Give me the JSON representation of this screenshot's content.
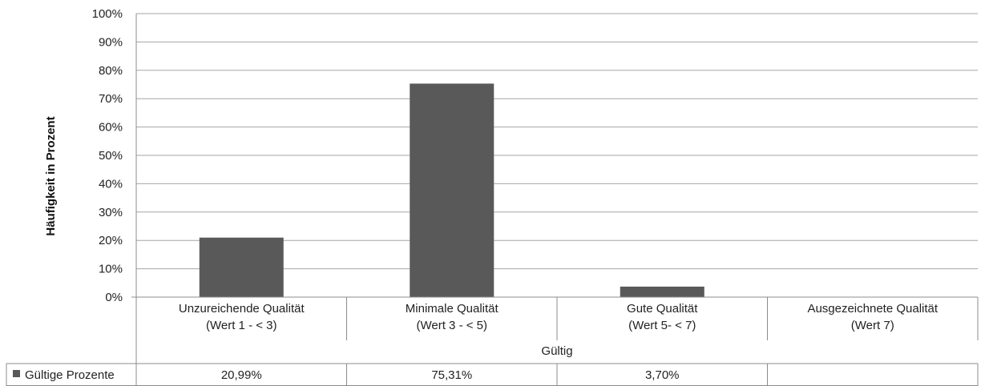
{
  "chart_data": {
    "type": "bar",
    "categories": [
      [
        "Unzureichende Qualität",
        "(Wert 1 - < 3)"
      ],
      [
        "Minimale Qualität",
        "(Wert 3 - < 5)"
      ],
      [
        "Gute Qualität",
        "(Wert 5- < 7)"
      ],
      [
        "Ausgezeichnete Qualität",
        "(Wert 7)"
      ]
    ],
    "group_label": "Gültig",
    "series": [
      {
        "name": "Gültige Prozente",
        "values": [
          20.99,
          75.31,
          3.7,
          null
        ],
        "value_labels": [
          "20,99%",
          "75,31%",
          "3,70%",
          ""
        ],
        "color": "#595959"
      }
    ],
    "ylabel": "Häufigkeit in Prozent",
    "ylim": [
      0,
      100
    ],
    "yticks": [
      0,
      10,
      20,
      30,
      40,
      50,
      60,
      70,
      80,
      90,
      100
    ],
    "ytick_labels": [
      "0%",
      "10%",
      "20%",
      "30%",
      "40%",
      "50%",
      "60%",
      "70%",
      "80%",
      "90%",
      "100%"
    ],
    "grid": true,
    "legend": "data-table"
  },
  "colors": {
    "bar": "#595959",
    "grid": "#a6a6a6",
    "border": "#8c8c8c"
  }
}
